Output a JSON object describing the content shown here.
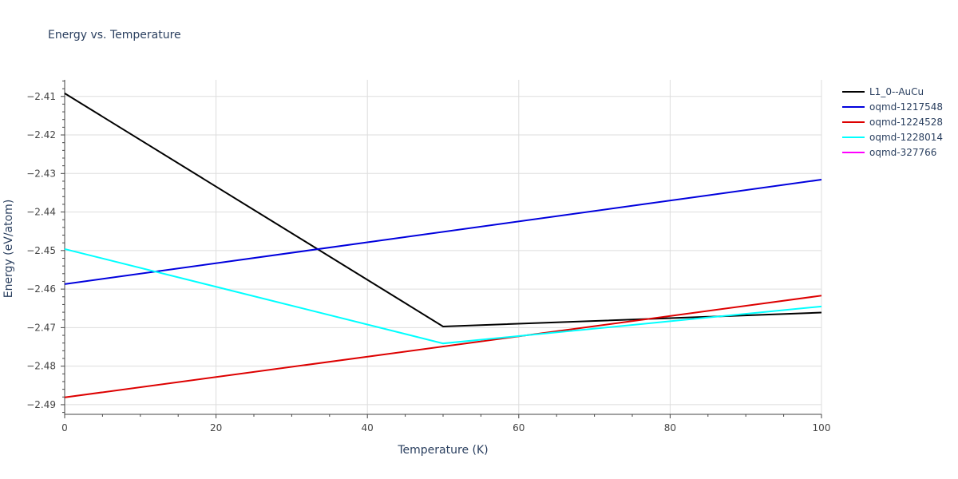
{
  "chart_data": {
    "type": "line",
    "title": "Energy vs. Temperature",
    "xlabel": "Temperature (K)",
    "ylabel": "Energy (eV/atom)",
    "xlim": [
      0,
      100
    ],
    "ylim": [
      -2.4925,
      -2.4057
    ],
    "x_ticks": [
      0,
      20,
      40,
      60,
      80,
      100
    ],
    "y_ticks": [
      -2.41,
      -2.42,
      -2.43,
      -2.44,
      -2.45,
      -2.46,
      -2.47,
      -2.48,
      -2.49
    ],
    "y_tick_labels": [
      "−2.41",
      "−2.42",
      "−2.43",
      "−2.44",
      "−2.45",
      "−2.46",
      "−2.47",
      "−2.48",
      "−2.49"
    ],
    "grid": true,
    "legend_position": "right",
    "series": [
      {
        "name": "L1_0--AuCu",
        "color": "#000000",
        "x": [
          0,
          50,
          100
        ],
        "y": [
          -2.4092,
          -2.4697,
          -2.4661
        ]
      },
      {
        "name": "oqmd-1217548",
        "color": "#0000dd",
        "x": [
          0,
          100
        ],
        "y": [
          -2.4587,
          -2.4316
        ]
      },
      {
        "name": "oqmd-1224528",
        "color": "#dd0000",
        "x": [
          0,
          100
        ],
        "y": [
          -2.4881,
          -2.4617
        ]
      },
      {
        "name": "oqmd-1228014",
        "color": "#00ffff",
        "x": [
          0,
          50,
          100
        ],
        "y": [
          -2.4496,
          -2.4741,
          -2.4645
        ]
      },
      {
        "name": "oqmd-327766",
        "color": "#ff00ff",
        "x": [],
        "y": []
      }
    ]
  }
}
